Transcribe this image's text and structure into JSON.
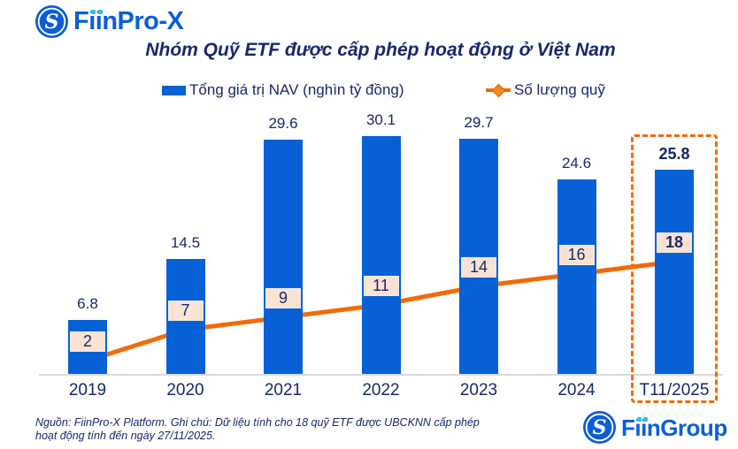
{
  "brand": {
    "fiinpro_text": "FiinPro-X",
    "fiingroup_text": "FiinGroup",
    "monogram": "S",
    "logo_blue": "#0b5ed7",
    "dot_cyan": "#39bdea"
  },
  "title": "Nhóm Quỹ ETF được cấp phép hoạt động ở Việt Nam",
  "legend": {
    "nav_label": "Tổng giá trị NAV (nghìn tỷ đồng)",
    "count_label": "Số lượng quỹ"
  },
  "chart_data": {
    "type": "bar",
    "subtype": "bar+line combo, dual axis, data labels only (no visible axes scales)",
    "title": "Nhóm Quỹ ETF được cấp phép hoạt động ở Việt Nam",
    "categories": [
      "2019",
      "2020",
      "2021",
      "2022",
      "2023",
      "2024",
      "T11/2025"
    ],
    "series": [
      {
        "name": "Tổng giá trị NAV (nghìn tỷ đồng)",
        "type": "bar",
        "color": "#0561d5",
        "values": [
          6.8,
          14.5,
          29.6,
          30.1,
          29.7,
          24.6,
          25.8
        ]
      },
      {
        "name": "Số lượng quỹ",
        "type": "line",
        "color": "#f26a0a",
        "label_bg": "#fbe3d4",
        "values": [
          2,
          7,
          9,
          11,
          14,
          16,
          18
        ]
      }
    ],
    "highlight_index": 6,
    "highlight_border_color": "#f26a0a",
    "xlabel": "",
    "ylabel": "",
    "grid": false,
    "legend_position": "top",
    "axis_line_color": "#d9d9d9",
    "label_color": "#16286d"
  },
  "footnote": {
    "line1": "Nguồn: FiinPro-X Platform. Ghi chú: Dữ liệu tính cho 18 quỹ ETF được UBCKNN cấp phép",
    "line2": "hoạt động tính đến ngày 27/11/2025."
  }
}
